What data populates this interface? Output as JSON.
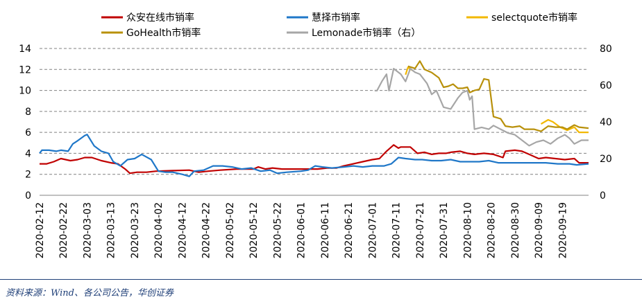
{
  "chart_data": {
    "type": "line",
    "title": "",
    "xlabel": "",
    "ylabel": "",
    "ylim_left": [
      0,
      14
    ],
    "ylim_right": [
      0,
      80
    ],
    "left_ticks": [
      "0",
      "2",
      "4",
      "6",
      "8",
      "10",
      "12",
      "14"
    ],
    "right_ticks": [
      "0",
      "20",
      "40",
      "60",
      "80"
    ],
    "grid": "horizontal dashed",
    "legend_placement": "top",
    "x_start": "2020-02-12",
    "x_end": "2020-09-30",
    "x_tick_labels": [
      "2020-02-12",
      "2020-02-22",
      "2020-03-03",
      "2020-03-13",
      "2020-03-23",
      "2020-04-02",
      "2020-04-12",
      "2020-04-22",
      "2020-05-02",
      "2020-05-12",
      "2020-05-22",
      "2020-06-01",
      "2020-06-11",
      "2020-06-21",
      "2020-07-01",
      "2020-07-11",
      "2020-07-21",
      "2020-07-31",
      "2020-08-10",
      "2020-08-20",
      "2020-08-30",
      "2020-09-09",
      "2020-09-19"
    ],
    "series": [
      {
        "name": "众安在线市销率",
        "color": "#c00000",
        "axis": "left",
        "points": [
          [
            "2020-02-12",
            3.0
          ],
          [
            "2020-02-15",
            3.0
          ],
          [
            "2020-02-18",
            3.2
          ],
          [
            "2020-02-21",
            3.5
          ],
          [
            "2020-02-25",
            3.3
          ],
          [
            "2020-02-28",
            3.4
          ],
          [
            "2020-03-02",
            3.6
          ],
          [
            "2020-03-05",
            3.6
          ],
          [
            "2020-03-09",
            3.3
          ],
          [
            "2020-03-13",
            3.1
          ],
          [
            "2020-03-16",
            3.0
          ],
          [
            "2020-03-19",
            2.5
          ],
          [
            "2020-03-21",
            2.1
          ],
          [
            "2020-03-24",
            2.2
          ],
          [
            "2020-03-28",
            2.2
          ],
          [
            "2020-04-01",
            2.3
          ],
          [
            "2020-04-08",
            2.35
          ],
          [
            "2020-04-15",
            2.4
          ],
          [
            "2020-04-19",
            2.2
          ],
          [
            "2020-04-23",
            2.3
          ],
          [
            "2020-04-28",
            2.4
          ],
          [
            "2020-05-05",
            2.5
          ],
          [
            "2020-05-12",
            2.5
          ],
          [
            "2020-05-14",
            2.7
          ],
          [
            "2020-05-17",
            2.5
          ],
          [
            "2020-05-20",
            2.6
          ],
          [
            "2020-05-24",
            2.5
          ],
          [
            "2020-05-29",
            2.5
          ],
          [
            "2020-06-03",
            2.5
          ],
          [
            "2020-06-08",
            2.5
          ],
          [
            "2020-06-12",
            2.6
          ],
          [
            "2020-06-16",
            2.6
          ],
          [
            "2020-06-19",
            2.8
          ],
          [
            "2020-06-23",
            3.0
          ],
          [
            "2020-06-27",
            3.2
          ],
          [
            "2020-07-01",
            3.4
          ],
          [
            "2020-07-04",
            3.5
          ],
          [
            "2020-07-07",
            4.2
          ],
          [
            "2020-07-10",
            4.8
          ],
          [
            "2020-07-12",
            4.5
          ],
          [
            "2020-07-13",
            4.6
          ],
          [
            "2020-07-17",
            4.6
          ],
          [
            "2020-07-20",
            4.0
          ],
          [
            "2020-07-23",
            4.1
          ],
          [
            "2020-07-26",
            3.9
          ],
          [
            "2020-07-29",
            4.0
          ],
          [
            "2020-08-01",
            4.0
          ],
          [
            "2020-08-03",
            4.1
          ],
          [
            "2020-08-07",
            4.2
          ],
          [
            "2020-08-10",
            4.0
          ],
          [
            "2020-08-13",
            3.9
          ],
          [
            "2020-08-17",
            4.0
          ],
          [
            "2020-08-21",
            3.9
          ],
          [
            "2020-08-25",
            3.6
          ],
          [
            "2020-08-26",
            4.2
          ],
          [
            "2020-08-30",
            4.3
          ],
          [
            "2020-09-02",
            4.2
          ],
          [
            "2020-09-05",
            3.9
          ],
          [
            "2020-09-09",
            3.5
          ],
          [
            "2020-09-12",
            3.6
          ],
          [
            "2020-09-16",
            3.5
          ],
          [
            "2020-09-20",
            3.4
          ],
          [
            "2020-09-24",
            3.5
          ],
          [
            "2020-09-26",
            3.1
          ],
          [
            "2020-09-30",
            3.1
          ]
        ]
      },
      {
        "name": "慧择市销率",
        "color": "#1f77c8",
        "axis": "left",
        "points": [
          [
            "2020-02-12",
            4.0
          ],
          [
            "2020-02-13",
            4.3
          ],
          [
            "2020-02-16",
            4.3
          ],
          [
            "2020-02-19",
            4.2
          ],
          [
            "2020-02-21",
            4.3
          ],
          [
            "2020-02-24",
            4.2
          ],
          [
            "2020-02-26",
            4.9
          ],
          [
            "2020-02-28",
            5.2
          ],
          [
            "2020-03-02",
            5.7
          ],
          [
            "2020-03-03",
            5.8
          ],
          [
            "2020-03-06",
            4.7
          ],
          [
            "2020-03-09",
            4.2
          ],
          [
            "2020-03-12",
            4.0
          ],
          [
            "2020-03-14",
            3.2
          ],
          [
            "2020-03-17",
            2.8
          ],
          [
            "2020-03-20",
            3.4
          ],
          [
            "2020-03-23",
            3.5
          ],
          [
            "2020-03-26",
            3.9
          ],
          [
            "2020-03-30",
            3.4
          ],
          [
            "2020-04-02",
            2.3
          ],
          [
            "2020-04-05",
            2.2
          ],
          [
            "2020-04-08",
            2.2
          ],
          [
            "2020-04-12",
            2.0
          ],
          [
            "2020-04-15",
            1.8
          ],
          [
            "2020-04-17",
            2.3
          ],
          [
            "2020-04-21",
            2.4
          ],
          [
            "2020-04-25",
            2.8
          ],
          [
            "2020-04-29",
            2.8
          ],
          [
            "2020-05-03",
            2.7
          ],
          [
            "2020-05-07",
            2.5
          ],
          [
            "2020-05-11",
            2.6
          ],
          [
            "2020-05-15",
            2.3
          ],
          [
            "2020-05-19",
            2.4
          ],
          [
            "2020-05-22",
            2.1
          ],
          [
            "2020-05-26",
            2.2
          ],
          [
            "2020-06-01",
            2.3
          ],
          [
            "2020-06-04",
            2.4
          ],
          [
            "2020-06-07",
            2.8
          ],
          [
            "2020-06-10",
            2.7
          ],
          [
            "2020-06-14",
            2.6
          ],
          [
            "2020-06-19",
            2.7
          ],
          [
            "2020-06-23",
            2.8
          ],
          [
            "2020-06-27",
            2.7
          ],
          [
            "2020-07-01",
            2.8
          ],
          [
            "2020-07-06",
            2.8
          ],
          [
            "2020-07-09",
            3.0
          ],
          [
            "2020-07-12",
            3.6
          ],
          [
            "2020-07-15",
            3.5
          ],
          [
            "2020-07-19",
            3.4
          ],
          [
            "2020-07-22",
            3.4
          ],
          [
            "2020-07-26",
            3.3
          ],
          [
            "2020-07-30",
            3.3
          ],
          [
            "2020-08-03",
            3.4
          ],
          [
            "2020-08-07",
            3.2
          ],
          [
            "2020-08-11",
            3.2
          ],
          [
            "2020-08-15",
            3.2
          ],
          [
            "2020-08-19",
            3.3
          ],
          [
            "2020-08-23",
            3.1
          ],
          [
            "2020-08-28",
            3.1
          ],
          [
            "2020-09-02",
            3.1
          ],
          [
            "2020-09-07",
            3.1
          ],
          [
            "2020-09-12",
            3.1
          ],
          [
            "2020-09-17",
            3.0
          ],
          [
            "2020-09-22",
            3.0
          ],
          [
            "2020-09-25",
            2.9
          ],
          [
            "2020-09-30",
            3.0
          ]
        ]
      },
      {
        "name": "selectquote市销率",
        "color": "#f2b800",
        "axis": "left",
        "points": [
          [
            "2020-07-15",
            11.5
          ],
          [
            "2020-07-16",
            12.2
          ],
          [
            "2020-07-18",
            11.9
          ],
          [
            "2020-09-10",
            6.8
          ],
          [
            "2020-09-13",
            7.2
          ],
          [
            "2020-09-15",
            7.0
          ],
          [
            "2020-09-18",
            6.5
          ],
          [
            "2020-09-21",
            6.2
          ],
          [
            "2020-09-24",
            6.5
          ],
          [
            "2020-09-26",
            6.0
          ],
          [
            "2020-09-30",
            6.0
          ]
        ]
      },
      {
        "name": "GoHealth市销率",
        "color": "#b8900a",
        "axis": "left",
        "points": [
          [
            "2020-07-16",
            12.3
          ],
          [
            "2020-07-19",
            12.1
          ],
          [
            "2020-07-21",
            12.8
          ],
          [
            "2020-07-23",
            12.0
          ],
          [
            "2020-07-26",
            11.7
          ],
          [
            "2020-07-29",
            11.2
          ],
          [
            "2020-07-31",
            10.3
          ],
          [
            "2020-08-02",
            10.4
          ],
          [
            "2020-08-04",
            10.6
          ],
          [
            "2020-08-06",
            10.2
          ],
          [
            "2020-08-08",
            10.2
          ],
          [
            "2020-08-10",
            10.3
          ],
          [
            "2020-08-11",
            9.8
          ],
          [
            "2020-08-13",
            10.0
          ],
          [
            "2020-08-15",
            10.1
          ],
          [
            "2020-08-17",
            11.1
          ],
          [
            "2020-08-19",
            11.0
          ],
          [
            "2020-08-21",
            7.5
          ],
          [
            "2020-08-24",
            7.3
          ],
          [
            "2020-08-26",
            6.6
          ],
          [
            "2020-08-29",
            6.5
          ],
          [
            "2020-09-01",
            6.6
          ],
          [
            "2020-09-03",
            6.3
          ],
          [
            "2020-09-07",
            6.3
          ],
          [
            "2020-09-10",
            6.1
          ],
          [
            "2020-09-13",
            6.6
          ],
          [
            "2020-09-16",
            6.5
          ],
          [
            "2020-09-19",
            6.5
          ],
          [
            "2020-09-21",
            6.3
          ],
          [
            "2020-09-24",
            6.7
          ],
          [
            "2020-09-26",
            6.5
          ],
          [
            "2020-09-30",
            6.4
          ]
        ]
      },
      {
        "name": "Lemonade市销率（右）",
        "color": "#a6a6a6",
        "axis": "right",
        "points": [
          [
            "2020-07-02",
            57
          ],
          [
            "2020-07-03",
            57
          ],
          [
            "2020-07-05",
            62
          ],
          [
            "2020-07-07",
            66
          ],
          [
            "2020-07-08",
            57
          ],
          [
            "2020-07-10",
            69
          ],
          [
            "2020-07-13",
            66
          ],
          [
            "2020-07-15",
            62
          ],
          [
            "2020-07-17",
            69
          ],
          [
            "2020-07-19",
            67
          ],
          [
            "2020-07-21",
            66
          ],
          [
            "2020-07-24",
            61
          ],
          [
            "2020-07-26",
            55
          ],
          [
            "2020-07-28",
            57
          ],
          [
            "2020-07-31",
            48
          ],
          [
            "2020-08-03",
            47
          ],
          [
            "2020-08-06",
            53
          ],
          [
            "2020-08-08",
            56
          ],
          [
            "2020-08-10",
            57
          ],
          [
            "2020-08-11",
            52
          ],
          [
            "2020-08-12",
            54
          ],
          [
            "2020-08-13",
            36
          ],
          [
            "2020-08-16",
            37
          ],
          [
            "2020-08-19",
            36
          ],
          [
            "2020-08-21",
            38
          ],
          [
            "2020-08-24",
            36
          ],
          [
            "2020-08-27",
            34
          ],
          [
            "2020-08-30",
            33
          ],
          [
            "2020-09-02",
            30
          ],
          [
            "2020-09-05",
            27
          ],
          [
            "2020-09-08",
            29
          ],
          [
            "2020-09-11",
            30
          ],
          [
            "2020-09-14",
            28
          ],
          [
            "2020-09-17",
            31
          ],
          [
            "2020-09-20",
            33
          ],
          [
            "2020-09-22",
            31
          ],
          [
            "2020-09-24",
            28
          ],
          [
            "2020-09-27",
            30
          ],
          [
            "2020-09-30",
            30
          ]
        ]
      }
    ]
  },
  "source_text": "资料来源：Wind、各公司公告，华创证券"
}
